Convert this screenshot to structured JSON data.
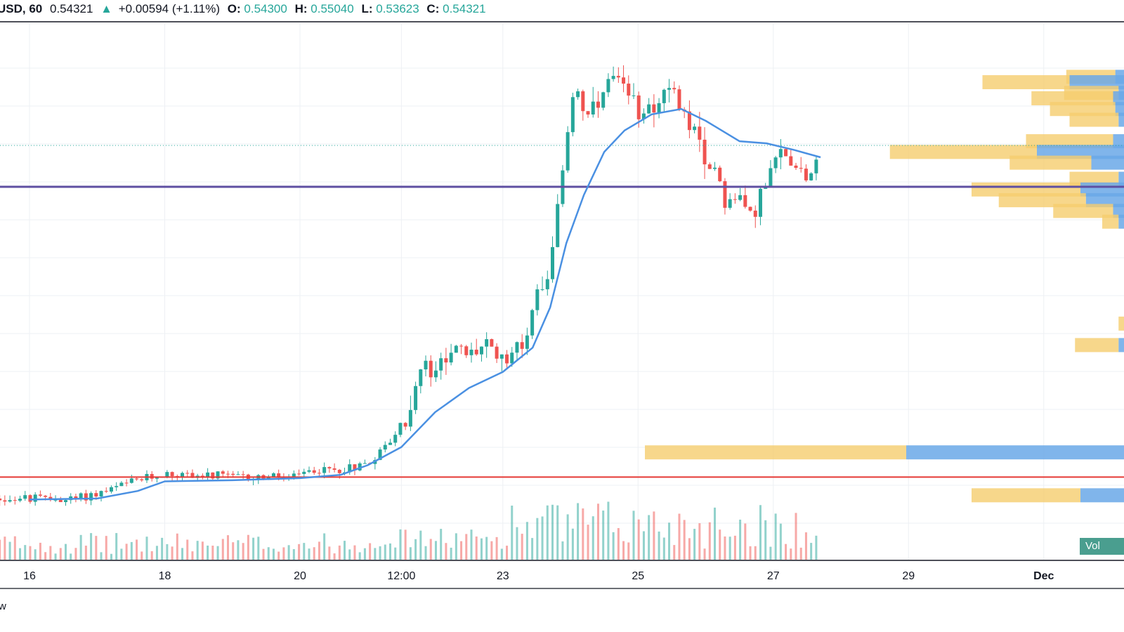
{
  "header": {
    "symbol": "USD, 60",
    "last": "0.54321",
    "change_arrow": "▲",
    "change": "+0.00594 (+1.11%)",
    "o_label": "O:",
    "o_value": "0.54300",
    "h_label": "H:",
    "h_value": "0.55040",
    "l_label": "L:",
    "l_value": "0.53623",
    "c_label": "C:",
    "c_value": "0.54321"
  },
  "volume_label": "Vol",
  "watermark": "w",
  "colors": {
    "up": "#26a69a",
    "down": "#ef5350",
    "ma": "#4a90e2",
    "support_line": "#e53935",
    "resistance_line": "#5e4fa2",
    "profile_up": "#f5cd6e",
    "profile_down": "#6aa8e8"
  },
  "chart_data": {
    "type": "candlestick",
    "title": "",
    "x_ticks": [
      {
        "label": "16",
        "pos": 0
      },
      {
        "label": "18",
        "pos": 1
      },
      {
        "label": "20",
        "pos": 2
      },
      {
        "label": "12:00",
        "pos": 2.75
      },
      {
        "label": "23",
        "pos": 3.5
      },
      {
        "label": "25",
        "pos": 4.5
      },
      {
        "label": "27",
        "pos": 5.5
      },
      {
        "label": "29",
        "pos": 6.5
      },
      {
        "label": "Dec",
        "pos": 7.5
      }
    ],
    "price_range": [
      0.466,
      0.566
    ],
    "last_price": 0.54321,
    "horizontal_levels": [
      {
        "name": "resistance",
        "value": 0.5355
      },
      {
        "name": "support",
        "value": 0.4814
      }
    ],
    "price_path": [
      [
        0.0,
        0.4774
      ],
      [
        0.3,
        0.4772
      ],
      [
        0.55,
        0.4786
      ],
      [
        0.8,
        0.4808
      ],
      [
        1.0,
        0.482
      ],
      [
        1.5,
        0.4814
      ],
      [
        1.95,
        0.4814
      ],
      [
        2.1,
        0.4826
      ],
      [
        2.3,
        0.4828
      ],
      [
        2.5,
        0.484
      ],
      [
        2.65,
        0.4876
      ],
      [
        2.8,
        0.493
      ],
      [
        2.9,
        0.502
      ],
      [
        3.0,
        0.5
      ],
      [
        3.1,
        0.506
      ],
      [
        3.25,
        0.504
      ],
      [
        3.35,
        0.506
      ],
      [
        3.5,
        0.504
      ],
      [
        3.65,
        0.506
      ],
      [
        3.75,
        0.516
      ],
      [
        3.83,
        0.52
      ],
      [
        3.9,
        0.53
      ],
      [
        3.96,
        0.54
      ],
      [
        4.0,
        0.552
      ],
      [
        4.05,
        0.554
      ],
      [
        4.12,
        0.548
      ],
      [
        4.2,
        0.55
      ],
      [
        4.3,
        0.556
      ],
      [
        4.38,
        0.553
      ],
      [
        4.5,
        0.55
      ],
      [
        4.6,
        0.551
      ],
      [
        4.72,
        0.553
      ],
      [
        4.82,
        0.55
      ],
      [
        4.92,
        0.546
      ],
      [
        5.0,
        0.538
      ],
      [
        5.07,
        0.54
      ],
      [
        5.13,
        0.534
      ],
      [
        5.2,
        0.532
      ],
      [
        5.25,
        0.534
      ],
      [
        5.32,
        0.53
      ],
      [
        5.38,
        0.533
      ],
      [
        5.45,
        0.536
      ],
      [
        5.55,
        0.542
      ],
      [
        5.65,
        0.54
      ],
      [
        5.75,
        0.538
      ],
      [
        5.85,
        0.542
      ]
    ],
    "ma_path": [
      [
        0.0,
        0.4772
      ],
      [
        0.5,
        0.4774
      ],
      [
        0.8,
        0.4788
      ],
      [
        1.0,
        0.4806
      ],
      [
        1.5,
        0.4808
      ],
      [
        2.0,
        0.4812
      ],
      [
        2.3,
        0.4818
      ],
      [
        2.5,
        0.4836
      ],
      [
        2.75,
        0.487
      ],
      [
        3.0,
        0.4935
      ],
      [
        3.25,
        0.498
      ],
      [
        3.5,
        0.501
      ],
      [
        3.72,
        0.5055
      ],
      [
        3.85,
        0.513
      ],
      [
        3.97,
        0.525
      ],
      [
        4.1,
        0.534
      ],
      [
        4.25,
        0.542
      ],
      [
        4.4,
        0.546
      ],
      [
        4.6,
        0.549
      ],
      [
        4.82,
        0.55
      ],
      [
        5.0,
        0.5478
      ],
      [
        5.25,
        0.544
      ],
      [
        5.45,
        0.5436
      ],
      [
        5.65,
        0.5424
      ],
      [
        5.85,
        0.541
      ]
    ],
    "volume_profile": [
      {
        "price": 0.556,
        "up": 0.45,
        "down": 0.08
      },
      {
        "price": 0.555,
        "up": 0.8,
        "down": 0.5
      },
      {
        "price": 0.553,
        "up": 0.5,
        "down": 0.05
      },
      {
        "price": 0.552,
        "up": 0.75,
        "down": 0.1
      },
      {
        "price": 0.55,
        "up": 0.6,
        "down": 0.08
      },
      {
        "price": 0.548,
        "up": 0.45,
        "down": 0.05
      },
      {
        "price": 0.544,
        "up": 0.8,
        "down": 0.1
      },
      {
        "price": 0.542,
        "up": 1.35,
        "down": 0.8
      },
      {
        "price": 0.54,
        "up": 0.75,
        "down": 0.3
      },
      {
        "price": 0.537,
        "up": 0.45,
        "down": 0.05
      },
      {
        "price": 0.535,
        "up": 1.0,
        "down": 0.4
      },
      {
        "price": 0.533,
        "up": 0.8,
        "down": 0.35
      },
      {
        "price": 0.531,
        "up": 0.55,
        "down": 0.1
      },
      {
        "price": 0.529,
        "up": 0.15,
        "down": 0.05
      },
      {
        "price": 0.51,
        "up": 0.05,
        "down": 0.0
      },
      {
        "price": 0.506,
        "up": 0.4,
        "down": 0.05
      },
      {
        "price": 0.486,
        "up": 2.4,
        "down": 2.0
      },
      {
        "price": 0.478,
        "up": 1.0,
        "down": 0.4
      }
    ]
  }
}
